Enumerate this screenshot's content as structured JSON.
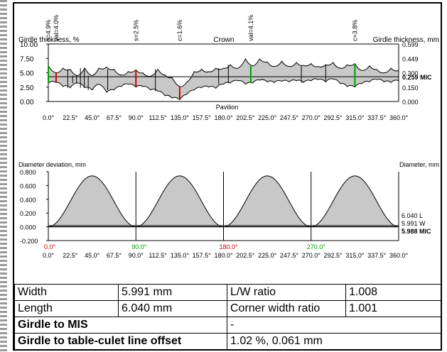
{
  "chart_data": [
    {
      "type": "area",
      "title": "",
      "left_axis_label": "Girdle thickness, %",
      "right_axis_label": "Girdle thickness, mm",
      "xlabel": "Pavilion",
      "top_label": "Crown",
      "y_ticks": [
        "10.00",
        "7.50",
        "5.00",
        "2.50",
        "0.00"
      ],
      "ylim": [
        0,
        10
      ],
      "right_ticks": [
        "0.599",
        "0.449",
        "0.300",
        "0.150",
        "0.000"
      ],
      "right_marker": "0.259 MIC",
      "mic_value_percent": 4.3,
      "x_ticks": [
        "0.0°",
        "22.5°",
        "45.0°",
        "67.5°",
        "90.0°",
        "112.5°",
        "135.0°",
        "157.5°",
        "180.0°",
        "202.5°",
        "225.0°",
        "247.5°",
        "270.0°",
        "292.5°",
        "315.0°",
        "337.5°",
        "360.0°"
      ],
      "xlim": [
        0,
        360
      ],
      "markers": [
        {
          "label": "s=4.9%",
          "angle": 0,
          "color": "#00a000"
        },
        {
          "label": "val=4.0%",
          "angle": 8,
          "color": "#d00000"
        },
        {
          "label": "s=2.5%",
          "angle": 90,
          "color": "#d00000"
        },
        {
          "label": "c=1.6%",
          "angle": 135,
          "color": "#d00000"
        },
        {
          "label": "val=4.1%",
          "angle": 208,
          "color": "#00a000"
        },
        {
          "label": "c=3.8%",
          "angle": 315,
          "color": "#00a000"
        }
      ],
      "series": [
        {
          "x": [
            0,
            8,
            15,
            22.5,
            30,
            37.5,
            45,
            52,
            60,
            67.5,
            75,
            82,
            90,
            97,
            105,
            112.5,
            120,
            127,
            135,
            142,
            150,
            157.5,
            165,
            172,
            180,
            187,
            195,
            202.5,
            210,
            217,
            225,
            232,
            240,
            247.5,
            255,
            262,
            270,
            277,
            285,
            292.5,
            300,
            307,
            315,
            322,
            330,
            337.5,
            345,
            352,
            360
          ],
          "upper": [
            6.2,
            5.0,
            5.8,
            5.6,
            4.5,
            5.8,
            4.5,
            5.8,
            6.0,
            5.6,
            4.6,
            5.2,
            5.5,
            5.0,
            4.4,
            5.6,
            4.6,
            4.2,
            2.6,
            3.3,
            5.2,
            5.6,
            5.2,
            5.8,
            5.8,
            6.4,
            5.8,
            7.4,
            6.2,
            7.4,
            6.9,
            6.1,
            7.0,
            6.1,
            6.8,
            6.3,
            6.6,
            6.1,
            6.4,
            6.8,
            5.8,
            6.4,
            6.6,
            5.4,
            6.2,
            5.6,
            5.0,
            5.8,
            5.4
          ],
          "lower": [
            3.2,
            3.3,
            2.6,
            2.4,
            3.2,
            2.4,
            2.0,
            3.0,
            1.6,
            2.0,
            2.6,
            3.0,
            2.5,
            2.6,
            2.0,
            1.8,
            1.0,
            0.6,
            0.3,
            1.2,
            2.0,
            2.4,
            2.5,
            2.3,
            3.0,
            3.2,
            3.6,
            3.0,
            3.2,
            3.7,
            3.4,
            3.3,
            3.5,
            3.4,
            3.6,
            3.3,
            3.6,
            3.8,
            3.4,
            3.9,
            3.1,
            2.6,
            2.5,
            3.1,
            3.4,
            3.8,
            3.4,
            3.3,
            3.6
          ]
        }
      ],
      "facet_lines": [
        20,
        25,
        29,
        33,
        37,
        41,
        61,
        110,
        175,
        185,
        260,
        285
      ]
    },
    {
      "type": "area",
      "title": "",
      "left_axis_label": "Diameter deviation, mm",
      "right_axis_label": "Diameter, mm",
      "y_ticks": [
        "0.800",
        "0.600",
        "0.400",
        "0.200",
        "0.000",
        "-0.200"
      ],
      "ylim": [
        -0.2,
        0.8
      ],
      "x_ticks": [
        "0.0°",
        "22.5°",
        "45.0°",
        "67.5°",
        "90.0°",
        "112.5°",
        "135.0°",
        "157.5°",
        "180.0°",
        "202.5°",
        "225.0°",
        "247.5°",
        "270.0°",
        "292.5°",
        "315.0°",
        "337.5°",
        "360.0°"
      ],
      "xlim": [
        0,
        360
      ],
      "color_ticks": [
        {
          "label": "0.0°",
          "angle": 0,
          "color": "#d00000"
        },
        {
          "label": "90.0°",
          "angle": 90,
          "color": "#00a000"
        },
        {
          "label": "180.0°",
          "angle": 180,
          "color": "#d00000"
        },
        {
          "label": "270.0°",
          "angle": 270,
          "color": "#00a000"
        }
      ],
      "right_labels": [
        "6.040 L",
        "5.991 W",
        "5.988 MIC"
      ],
      "peak_value": 0.74,
      "period_deg": 90,
      "dividers": [
        90,
        180,
        270
      ]
    }
  ],
  "table": {
    "rows": [
      [
        "Width",
        "5.991 mm",
        "L/W ratio",
        "1.008"
      ],
      [
        "Length",
        "6.040 mm",
        "Corner width ratio",
        "1.001"
      ]
    ],
    "girdle_mis_label": "Girdle to MIS",
    "girdle_mis_value": "-",
    "offset_label": "Girdle to table-culet line offset",
    "offset_value": "1.02 %, 0.061 mm"
  }
}
